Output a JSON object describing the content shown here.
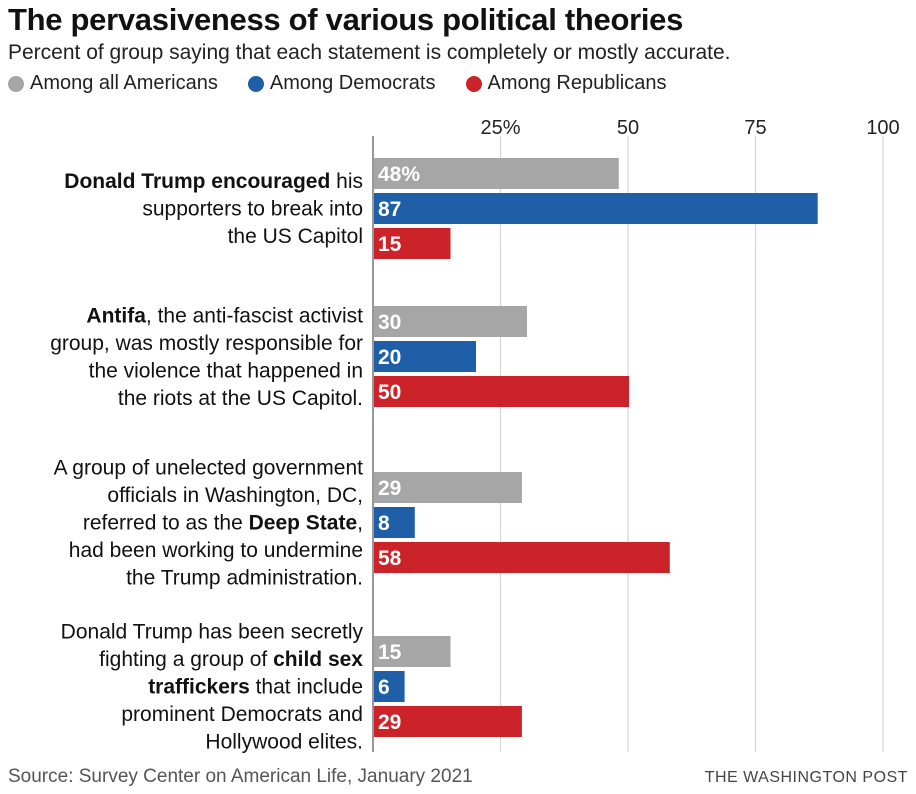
{
  "header": {
    "title": "The pervasiveness of various political theories",
    "subtitle": "Percent of group saying that each statement is completely or mostly accurate."
  },
  "footer": {
    "source": "Source: Survey Center on American Life, January 2021",
    "credit": "THE WASHINGTON POST"
  },
  "chart_data": {
    "type": "bar",
    "orientation": "horizontal",
    "xlim": [
      0,
      100
    ],
    "grid": true,
    "legend_placement": "top",
    "tick_values": [
      25,
      50,
      75,
      100
    ],
    "tick_labels": [
      "25%",
      "50",
      "75",
      "100"
    ],
    "categories": [
      [
        [
          {
            "t": "Donald Trump encouraged",
            "b": true
          },
          {
            "t": " his",
            "b": false
          }
        ],
        [
          {
            "t": "supporters to break into",
            "b": false
          }
        ],
        [
          {
            "t": "the US Capitol",
            "b": false
          }
        ]
      ],
      [
        [
          {
            "t": "Antifa",
            "b": true
          },
          {
            "t": ", the anti-fascist activist",
            "b": false
          }
        ],
        [
          {
            "t": "group, was mostly responsible for",
            "b": false
          }
        ],
        [
          {
            "t": "the violence that happened in",
            "b": false
          }
        ],
        [
          {
            "t": "the riots at the US Capitol.",
            "b": false
          }
        ]
      ],
      [
        [
          {
            "t": "A group of unelected government",
            "b": false
          }
        ],
        [
          {
            "t": "officials in Washington, DC,",
            "b": false
          }
        ],
        [
          {
            "t": "referred to as the ",
            "b": false
          },
          {
            "t": "Deep State",
            "b": true
          },
          {
            "t": ",",
            "b": false
          }
        ],
        [
          {
            "t": "had been working to undermine",
            "b": false
          }
        ],
        [
          {
            "t": "the Trump administration.",
            "b": false
          }
        ]
      ],
      [
        [
          {
            "t": "Donald Trump has been secretly",
            "b": false
          }
        ],
        [
          {
            "t": "fighting a group of ",
            "b": false
          },
          {
            "t": "child sex",
            "b": true
          }
        ],
        [
          {
            "t": "traffickers",
            "b": true
          },
          {
            "t": " that include",
            "b": false
          }
        ],
        [
          {
            "t": "prominent Democrats and",
            "b": false
          }
        ],
        [
          {
            "t": "Hollywood elites.",
            "b": false
          }
        ]
      ]
    ],
    "series": [
      {
        "name": "Among all Americans",
        "color": "#a6a6a6",
        "values": [
          48,
          30,
          29,
          15
        ],
        "labels": [
          "48%",
          "30",
          "29",
          "15"
        ]
      },
      {
        "name": "Among Democrats",
        "color": "#1f5fa8",
        "values": [
          87,
          20,
          8,
          6
        ],
        "labels": [
          "87",
          "20",
          "8",
          "6"
        ]
      },
      {
        "name": "Among Republicans",
        "color": "#cc2229",
        "values": [
          15,
          50,
          58,
          29
        ],
        "labels": [
          "15",
          "50",
          "58",
          "29"
        ]
      }
    ]
  }
}
